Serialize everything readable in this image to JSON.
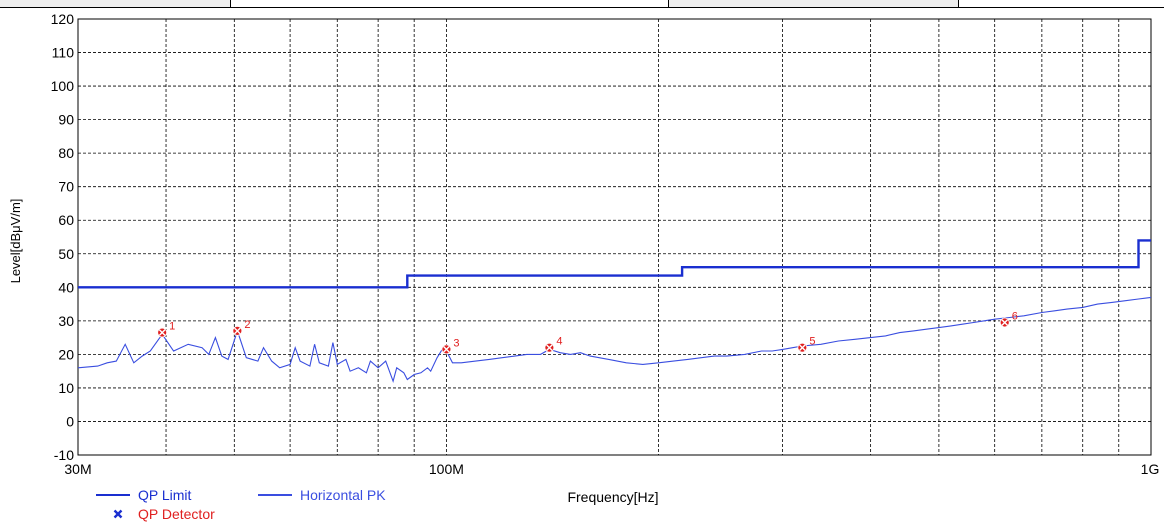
{
  "chart_data": {
    "type": "line",
    "xscale": "log",
    "xlabel": "Frequency[Hz]",
    "ylabel": "Level[dBμV/m]",
    "xlim_hz": [
      30000000,
      1000000000
    ],
    "ylim": [
      -10,
      120
    ],
    "yticks": [
      -10,
      0,
      10,
      20,
      30,
      40,
      50,
      60,
      70,
      80,
      90,
      100,
      110,
      120
    ],
    "xtick_labels": [
      {
        "hz": 30000000,
        "label": "30M"
      },
      {
        "hz": 100000000,
        "label": "100M"
      },
      {
        "hz": 1000000000,
        "label": "1G"
      }
    ],
    "x_gridlines_hz": [
      40000000,
      50000000,
      60000000,
      70000000,
      80000000,
      90000000,
      100000000,
      200000000,
      300000000,
      400000000,
      500000000,
      600000000,
      700000000,
      800000000,
      900000000
    ],
    "grid": true,
    "colors": {
      "limit": "#1a2fd0",
      "trace": "#3a4ee0",
      "detector": "#e02020",
      "grid": "#000000"
    },
    "series": [
      {
        "name": "QP Limit",
        "kind": "step",
        "points": [
          [
            30000000,
            40
          ],
          [
            88000000,
            40
          ],
          [
            88000000,
            43.5
          ],
          [
            216000000,
            43.5
          ],
          [
            216000000,
            46
          ],
          [
            960000000,
            46
          ],
          [
            960000000,
            54
          ],
          [
            1000000000,
            54
          ]
        ]
      },
      {
        "name": "Horizontal PK",
        "kind": "line",
        "points": [
          [
            30000000,
            16
          ],
          [
            32000000,
            16.5
          ],
          [
            33000000,
            17.5
          ],
          [
            34000000,
            18
          ],
          [
            35000000,
            23
          ],
          [
            36000000,
            17.5
          ],
          [
            37000000,
            19.5
          ],
          [
            38000000,
            21
          ],
          [
            39500000,
            26
          ],
          [
            41000000,
            21
          ],
          [
            43000000,
            23
          ],
          [
            45000000,
            22
          ],
          [
            46000000,
            20
          ],
          [
            47000000,
            25
          ],
          [
            48000000,
            19.5
          ],
          [
            49000000,
            18.5
          ],
          [
            50500000,
            27
          ],
          [
            52000000,
            19
          ],
          [
            54000000,
            18
          ],
          [
            55000000,
            22
          ],
          [
            56500000,
            18
          ],
          [
            58000000,
            16
          ],
          [
            60000000,
            17
          ],
          [
            61000000,
            22
          ],
          [
            62000000,
            18
          ],
          [
            64000000,
            16.5
          ],
          [
            65000000,
            23
          ],
          [
            66000000,
            17.5
          ],
          [
            68000000,
            16.5
          ],
          [
            69000000,
            23.5
          ],
          [
            70000000,
            17
          ],
          [
            72000000,
            18.5
          ],
          [
            73000000,
            15
          ],
          [
            75000000,
            16
          ],
          [
            77000000,
            14.5
          ],
          [
            78000000,
            18
          ],
          [
            80000000,
            16
          ],
          [
            82000000,
            18
          ],
          [
            84000000,
            12
          ],
          [
            85000000,
            16
          ],
          [
            87000000,
            14.5
          ],
          [
            88000000,
            12.5
          ],
          [
            90000000,
            14
          ],
          [
            92000000,
            14.5
          ],
          [
            94000000,
            16
          ],
          [
            95000000,
            15
          ],
          [
            97000000,
            19
          ],
          [
            99000000,
            22
          ],
          [
            100000000,
            21
          ],
          [
            102000000,
            17.5
          ],
          [
            105000000,
            17.5
          ],
          [
            110000000,
            18
          ],
          [
            115000000,
            18.5
          ],
          [
            120000000,
            19
          ],
          [
            125000000,
            19.5
          ],
          [
            130000000,
            20
          ],
          [
            136000000,
            20
          ],
          [
            140000000,
            21.5
          ],
          [
            145000000,
            20.5
          ],
          [
            150000000,
            20
          ],
          [
            155000000,
            20.5
          ],
          [
            160000000,
            19.5
          ],
          [
            170000000,
            18.5
          ],
          [
            180000000,
            17.5
          ],
          [
            190000000,
            17
          ],
          [
            200000000,
            17.5
          ],
          [
            210000000,
            18
          ],
          [
            220000000,
            18.5
          ],
          [
            230000000,
            19
          ],
          [
            240000000,
            19.5
          ],
          [
            250000000,
            19.5
          ],
          [
            265000000,
            20
          ],
          [
            280000000,
            21
          ],
          [
            290000000,
            21
          ],
          [
            300000000,
            21.5
          ],
          [
            310000000,
            22
          ],
          [
            320000000,
            22.5
          ],
          [
            340000000,
            23
          ],
          [
            360000000,
            24
          ],
          [
            380000000,
            24.5
          ],
          [
            400000000,
            25
          ],
          [
            420000000,
            25.5
          ],
          [
            440000000,
            26.5
          ],
          [
            460000000,
            27
          ],
          [
            480000000,
            27.5
          ],
          [
            500000000,
            28
          ],
          [
            520000000,
            28.5
          ],
          [
            540000000,
            29
          ],
          [
            560000000,
            29.5
          ],
          [
            580000000,
            30
          ],
          [
            600000000,
            30.5
          ],
          [
            630000000,
            31
          ],
          [
            660000000,
            31.5
          ],
          [
            700000000,
            32.5
          ],
          [
            730000000,
            33
          ],
          [
            760000000,
            33.5
          ],
          [
            800000000,
            34
          ],
          [
            840000000,
            35
          ],
          [
            880000000,
            35.5
          ],
          [
            920000000,
            36
          ],
          [
            960000000,
            36.5
          ],
          [
            1000000000,
            37
          ]
        ]
      },
      {
        "name": "QP Detector",
        "kind": "markers",
        "points": [
          {
            "hz": 39500000,
            "level": 26.5,
            "label": "1"
          },
          {
            "hz": 50500000,
            "level": 27,
            "label": "2"
          },
          {
            "hz": 100000000,
            "level": 21.5,
            "label": "3"
          },
          {
            "hz": 140000000,
            "level": 22,
            "label": "4"
          },
          {
            "hz": 320000000,
            "level": 22,
            "label": "5"
          },
          {
            "hz": 620000000,
            "level": 29.5,
            "label": "6"
          }
        ]
      }
    ],
    "legend": [
      {
        "label": "QP Limit",
        "symbol": "line",
        "color": "#1a2fd0"
      },
      {
        "label": "Horizontal PK",
        "symbol": "line",
        "color": "#3a4ee0"
      },
      {
        "label": "QP Detector",
        "symbol": "marker",
        "color": "#e02020"
      }
    ]
  }
}
